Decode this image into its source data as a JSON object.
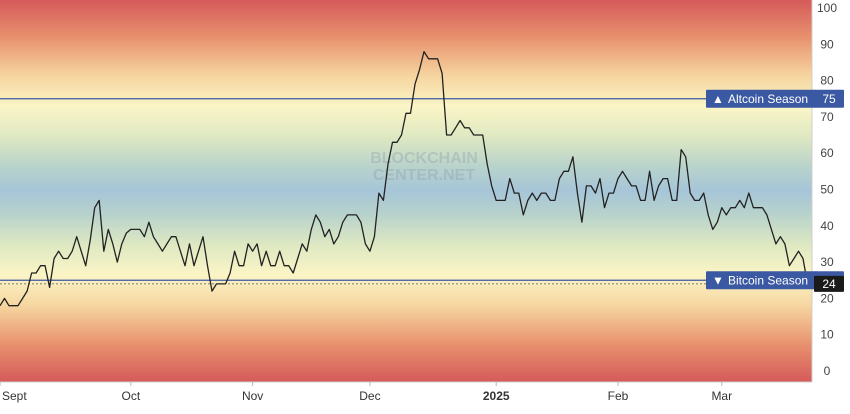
{
  "chart_data": {
    "type": "line",
    "ylim": [
      0,
      100
    ],
    "yticks": [
      "0",
      "10",
      "20",
      "30",
      "40",
      "50",
      "60",
      "70",
      "80",
      "90",
      "100"
    ],
    "x_ticks": [
      {
        "label": "Sept",
        "i": 0
      },
      {
        "label": "Oct",
        "i": 29
      },
      {
        "label": "Nov",
        "i": 56
      },
      {
        "label": "Dec",
        "i": 82
      },
      {
        "label": "2025",
        "i": 110,
        "bold": true
      },
      {
        "label": "Feb",
        "i": 137
      },
      {
        "label": "Mar",
        "i": 160
      }
    ],
    "background": "rainbow bands (red at 0 and 100, yellow, green, blue at 50)",
    "series": [
      {
        "color": "#222222",
        "values": [
          18,
          20,
          18,
          18,
          18,
          20,
          22,
          27,
          27,
          29,
          29,
          23,
          31,
          33,
          31,
          31,
          33,
          37,
          33,
          29,
          36,
          45,
          47,
          33,
          39,
          35,
          30,
          35,
          38,
          39,
          39,
          39,
          37,
          41,
          37,
          35,
          33,
          35,
          37,
          37,
          33,
          29,
          35,
          29,
          33,
          37,
          29,
          22,
          24,
          24,
          24,
          27,
          33,
          29,
          29,
          35,
          33,
          35,
          29,
          33,
          29,
          29,
          33,
          29,
          29,
          27,
          31,
          35,
          33,
          39,
          43,
          41,
          37,
          39,
          35,
          37,
          41,
          43,
          43,
          43,
          41,
          35,
          33,
          37,
          49,
          47,
          57,
          63,
          63,
          65,
          71,
          71,
          79,
          83,
          88,
          86,
          86,
          86,
          82,
          65,
          65,
          67,
          69,
          67,
          67,
          65,
          65,
          65,
          57,
          51,
          47,
          47,
          47,
          53,
          49,
          49,
          43,
          47,
          49,
          47,
          49,
          49,
          47,
          47,
          53,
          55,
          55,
          59,
          49,
          41,
          51,
          51,
          49,
          53,
          45,
          49,
          49,
          53,
          55,
          53,
          51,
          51,
          47,
          47,
          55,
          47,
          51,
          53,
          53,
          47,
          47,
          61,
          59,
          49,
          47,
          47,
          49,
          43,
          39,
          41,
          45,
          43,
          45,
          45,
          47,
          45,
          49,
          45,
          45,
          45,
          43,
          39,
          35,
          37,
          35,
          29,
          31,
          33,
          31,
          24,
          24
        ]
      }
    ],
    "reference_lines": [
      {
        "label": "Altcoin Season",
        "value": 75,
        "value_label": "75",
        "color": "#3b59a3",
        "arrow": "▲"
      },
      {
        "label": "Bitcoin Season",
        "value": 25,
        "value_label": "25",
        "color": "#3b59a3",
        "arrow": "▼"
      }
    ],
    "current_value": {
      "value": 24,
      "label": "24"
    },
    "watermark": [
      "BLOCKCHAIN",
      "CENTER.NET"
    ]
  }
}
